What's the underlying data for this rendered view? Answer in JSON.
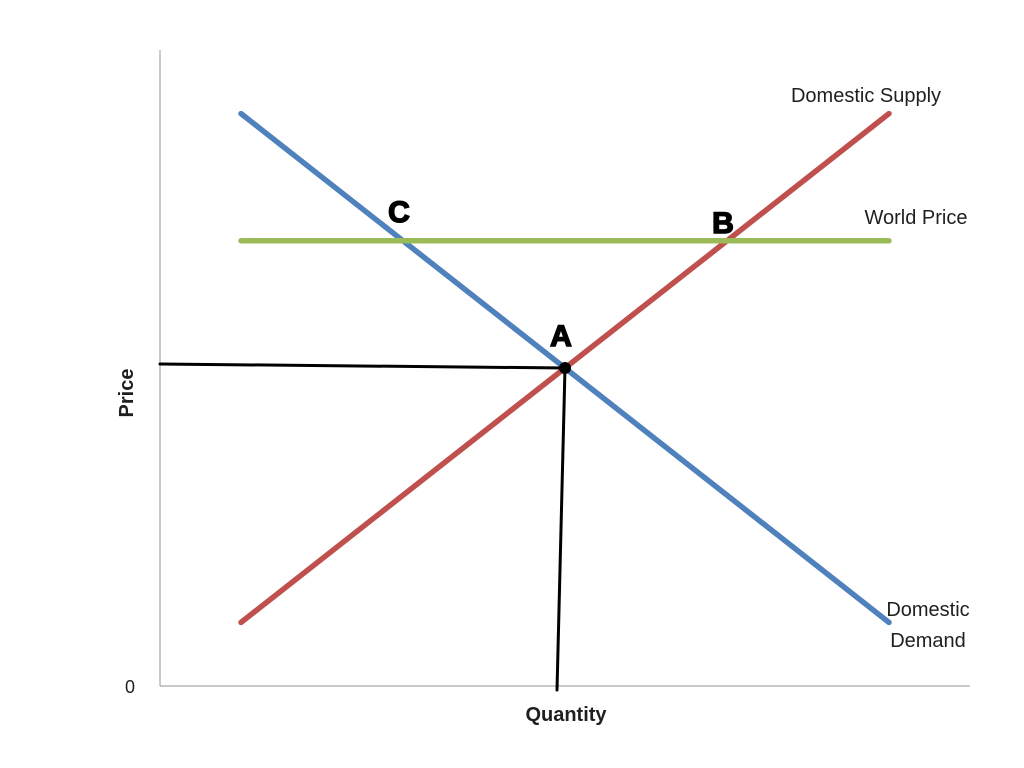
{
  "chart_data": {
    "type": "line",
    "title": "",
    "xlabel": "Quantity",
    "ylabel": "Price",
    "x_ticks": [],
    "y_ticks": [
      {
        "value": 0,
        "label": "0"
      }
    ],
    "xlim": [
      0,
      10
    ],
    "ylim": [
      0,
      10
    ],
    "grid": false,
    "legend": "none",
    "series": [
      {
        "name": "Domestic Supply",
        "color": "#c0504d",
        "x": [
          1,
          9
        ],
        "y": [
          1,
          9
        ]
      },
      {
        "name": "Domestic Demand",
        "color": "#4f81bd",
        "x": [
          1,
          9
        ],
        "y": [
          9,
          1
        ]
      },
      {
        "name": "World Price",
        "color": "#9bbb59",
        "x": [
          1,
          9
        ],
        "y": [
          7,
          7
        ]
      }
    ],
    "points": [
      {
        "label": "A",
        "x": 5,
        "y": 5
      },
      {
        "label": "B",
        "x": 7,
        "y": 7
      },
      {
        "label": "C",
        "x": 3,
        "y": 7
      }
    ]
  }
}
